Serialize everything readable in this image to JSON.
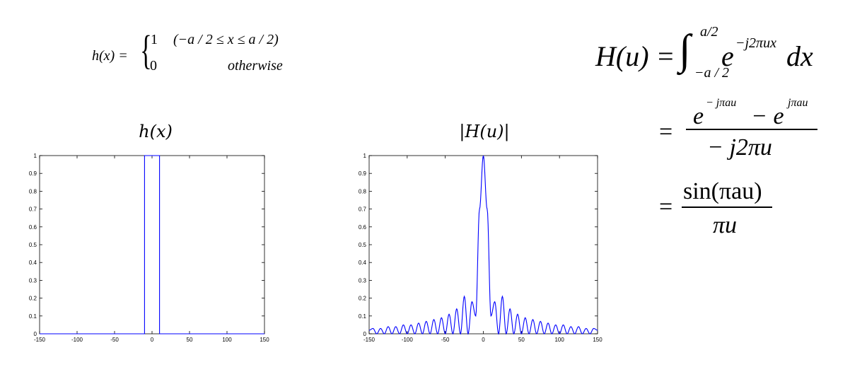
{
  "left_formula": {
    "lhs": "h(x) =",
    "case1_value": "1",
    "case1_condition": "(−a / 2 ≤ x ≤ a / 2)",
    "case2_value": "0",
    "case2_condition": "otherwise"
  },
  "right_formula": {
    "line1_lhs": "H(u) =",
    "integral_upper": "a/2",
    "integral_lower": "−a / 2",
    "integrand_base": "e",
    "integrand_exp": "−j2πux",
    "integrand_dx": "dx",
    "line2_eq": "=",
    "line2_num_a": "e",
    "line2_num_a_exp": "− jπau",
    "line2_num_minus": "− e",
    "line2_num_b_exp": "jπau",
    "line2_den": "− j2πu",
    "line3_eq": "=",
    "line3_num": "sin(πau)",
    "line3_den": "πu"
  },
  "chart_data": [
    {
      "type": "line",
      "title": "h(x)",
      "xlim": [
        -150,
        150
      ],
      "ylim": [
        0,
        1
      ],
      "xticks": [
        -150,
        -100,
        -50,
        0,
        50,
        100,
        150
      ],
      "yticks": [
        0,
        0.1,
        0.2,
        0.3,
        0.4,
        0.5,
        0.6,
        0.7,
        0.8,
        0.9,
        1
      ],
      "line_color": "#0000ff",
      "series": [
        {
          "x": [
            -150,
            -10,
            -10,
            10,
            10,
            150
          ],
          "y": [
            0,
            0,
            1,
            1,
            0,
            0
          ]
        }
      ]
    },
    {
      "type": "line",
      "title": "|H(u)|",
      "xlim": [
        -150,
        150
      ],
      "ylim": [
        0,
        1
      ],
      "xticks": [
        -150,
        -100,
        -50,
        0,
        50,
        100,
        150
      ],
      "yticks": [
        0,
        0.1,
        0.2,
        0.3,
        0.4,
        0.5,
        0.6,
        0.7,
        0.8,
        0.9,
        1
      ],
      "line_color": "#0000ff",
      "series": [
        {
          "x": [
            -150,
            -145,
            -140,
            -135,
            -130,
            -125,
            -120,
            -115,
            -110,
            -105,
            -100,
            -95,
            -90,
            -85,
            -80,
            -75,
            -70,
            -65,
            -60,
            -55,
            -50,
            -45,
            -40,
            -35,
            -30,
            -25,
            -20,
            -15,
            -10,
            -5,
            0,
            5,
            10,
            15,
            20,
            25,
            30,
            35,
            40,
            45,
            50,
            55,
            60,
            65,
            70,
            75,
            80,
            85,
            90,
            95,
            100,
            105,
            110,
            115,
            120,
            125,
            130,
            135,
            140,
            145,
            150
          ],
          "y": [
            0.02,
            0.03,
            0.0,
            0.03,
            0.0,
            0.04,
            0.0,
            0.04,
            0.0,
            0.05,
            0.0,
            0.05,
            0.0,
            0.06,
            0.0,
            0.07,
            0.0,
            0.08,
            0.0,
            0.09,
            0.0,
            0.11,
            0.0,
            0.14,
            0.0,
            0.21,
            0.0,
            0.18,
            0.1,
            0.7,
            1.0,
            0.7,
            0.1,
            0.18,
            0.0,
            0.21,
            0.0,
            0.14,
            0.0,
            0.11,
            0.0,
            0.09,
            0.0,
            0.08,
            0.0,
            0.07,
            0.0,
            0.06,
            0.0,
            0.05,
            0.0,
            0.05,
            0.0,
            0.04,
            0.0,
            0.04,
            0.0,
            0.03,
            0.0,
            0.03,
            0.02
          ]
        }
      ]
    }
  ]
}
